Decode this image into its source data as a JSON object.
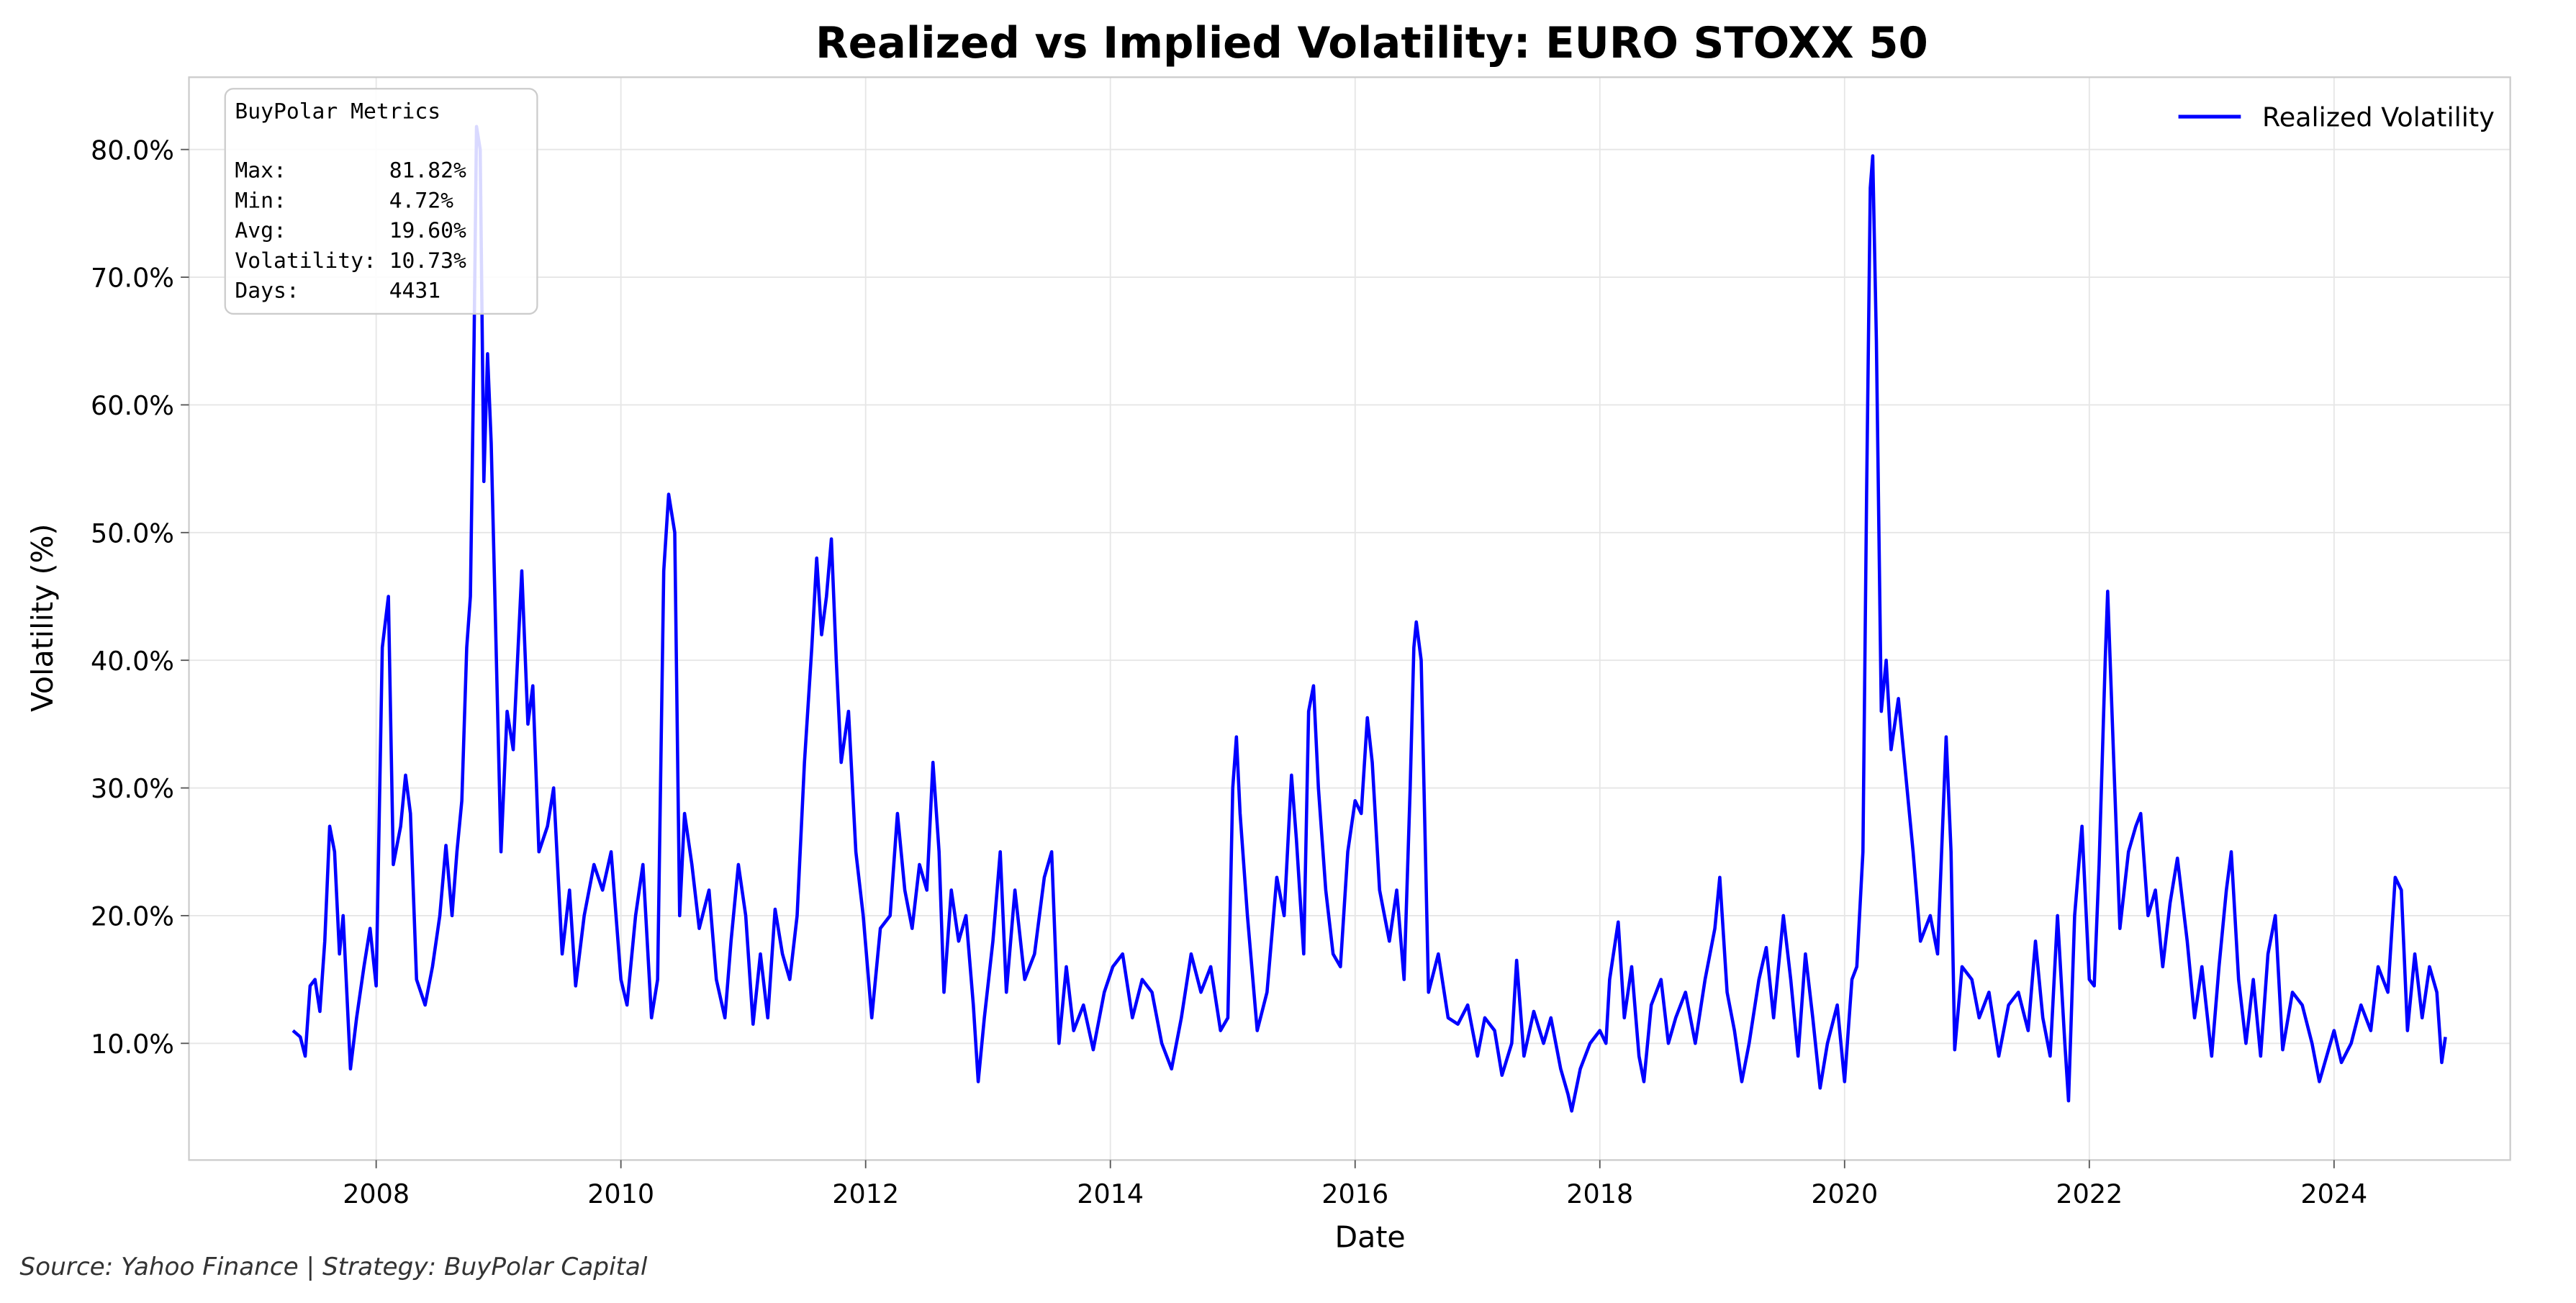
{
  "chart_data": {
    "type": "line",
    "title": "Realized vs Implied Volatility: EURO STOXX 50",
    "x_label": "Date",
    "y_label": "Volatility (%)",
    "source": "Source: Yahoo Finance | Strategy: BuyPolar Capital",
    "legend": "upper right",
    "grid": true,
    "xlim": [
      2006.47,
      2025.44
    ],
    "xticks": [
      2008,
      2010,
      2012,
      2014,
      2016,
      2018,
      2020,
      2022,
      2024
    ],
    "ylim": [
      0.86,
      85.66
    ],
    "yticks": [
      {
        "value": 10,
        "label": "10.0%"
      },
      {
        "value": 20,
        "label": "20.0%"
      },
      {
        "value": 30,
        "label": "30.0%"
      },
      {
        "value": 40,
        "label": "40.0%"
      },
      {
        "value": 50,
        "label": "50.0%"
      },
      {
        "value": 60,
        "label": "60.0%"
      },
      {
        "value": 70,
        "label": "70.0%"
      },
      {
        "value": 80,
        "label": "80.0%"
      }
    ],
    "stats_box": {
      "title": "BuyPolar Metrics",
      "lines": [
        "Max:        81.82%",
        "Min:        4.72%",
        "Avg:        19.60%",
        "Volatility: 10.73%",
        "Days:       4431"
      ]
    },
    "x": [
      2007.32,
      2007.38,
      2007.42,
      2007.46,
      2007.5,
      2007.54,
      2007.58,
      2007.62,
      2007.66,
      2007.7,
      2007.73,
      2007.79,
      2007.84,
      2007.9,
      2007.95,
      2008.0,
      2008.05,
      2008.1,
      2008.14,
      2008.2,
      2008.24,
      2008.28,
      2008.33,
      2008.4,
      2008.46,
      2008.52,
      2008.57,
      2008.62,
      2008.66,
      2008.7,
      2008.74,
      2008.77,
      2008.8,
      2008.82,
      2008.85,
      2008.88,
      2008.91,
      2008.94,
      2008.97,
      2009.02,
      2009.07,
      2009.12,
      2009.19,
      2009.24,
      2009.28,
      2009.33,
      2009.4,
      2009.45,
      2009.52,
      2009.58,
      2009.63,
      2009.7,
      2009.78,
      2009.85,
      2009.92,
      2010.0,
      2010.05,
      2010.12,
      2010.18,
      2010.25,
      2010.3,
      2010.35,
      2010.39,
      2010.44,
      2010.48,
      2010.52,
      2010.58,
      2010.64,
      2010.72,
      2010.78,
      2010.85,
      2010.9,
      2010.96,
      2011.02,
      2011.08,
      2011.14,
      2011.2,
      2011.26,
      2011.32,
      2011.38,
      2011.44,
      2011.5,
      2011.56,
      2011.6,
      2011.64,
      2011.68,
      2011.72,
      2011.76,
      2011.8,
      2011.86,
      2011.92,
      2011.98,
      2012.05,
      2012.12,
      2012.2,
      2012.26,
      2012.32,
      2012.38,
      2012.44,
      2012.5,
      2012.55,
      2012.6,
      2012.64,
      2012.7,
      2012.76,
      2012.82,
      2012.88,
      2012.92,
      2012.97,
      2013.04,
      2013.1,
      2013.15,
      2013.22,
      2013.3,
      2013.38,
      2013.46,
      2013.52,
      2013.58,
      2013.64,
      2013.7,
      2013.78,
      2013.86,
      2013.95,
      2014.02,
      2014.1,
      2014.18,
      2014.26,
      2014.34,
      2014.42,
      2014.5,
      2014.58,
      2014.66,
      2014.74,
      2014.82,
      2014.9,
      2014.96,
      2015.0,
      2015.03,
      2015.06,
      2015.12,
      2015.2,
      2015.28,
      2015.36,
      2015.42,
      2015.48,
      2015.52,
      2015.58,
      2015.62,
      2015.66,
      2015.7,
      2015.76,
      2015.82,
      2015.88,
      2015.94,
      2016.0,
      2016.05,
      2016.1,
      2016.14,
      2016.2,
      2016.28,
      2016.34,
      2016.4,
      2016.45,
      2016.48,
      2016.5,
      2016.54,
      2016.6,
      2016.68,
      2016.76,
      2016.84,
      2016.92,
      2017.0,
      2017.06,
      2017.14,
      2017.2,
      2017.28,
      2017.32,
      2017.38,
      2017.46,
      2017.54,
      2017.6,
      2017.68,
      2017.74,
      2017.77,
      2017.84,
      2017.92,
      2018.0,
      2018.05,
      2018.08,
      2018.15,
      2018.2,
      2018.26,
      2018.32,
      2018.36,
      2018.42,
      2018.5,
      2018.56,
      2018.62,
      2018.7,
      2018.78,
      2018.86,
      2018.94,
      2018.98,
      2019.04,
      2019.1,
      2019.16,
      2019.22,
      2019.3,
      2019.36,
      2019.42,
      2019.5,
      2019.56,
      2019.62,
      2019.68,
      2019.74,
      2019.8,
      2019.86,
      2019.94,
      2020.0,
      2020.06,
      2020.1,
      2020.15,
      2020.18,
      2020.21,
      2020.23,
      2020.26,
      2020.3,
      2020.34,
      2020.38,
      2020.44,
      2020.5,
      2020.56,
      2020.62,
      2020.7,
      2020.76,
      2020.83,
      2020.87,
      2020.9,
      2020.96,
      2021.04,
      2021.1,
      2021.18,
      2021.26,
      2021.34,
      2021.42,
      2021.5,
      2021.56,
      2021.62,
      2021.68,
      2021.74,
      2021.8,
      2021.83,
      2021.88,
      2021.94,
      2022.0,
      2022.04,
      2022.08,
      2022.13,
      2022.15,
      2022.2,
      2022.25,
      2022.32,
      2022.38,
      2022.42,
      2022.48,
      2022.54,
      2022.6,
      2022.66,
      2022.72,
      2022.8,
      2022.86,
      2022.92,
      2023.0,
      2023.06,
      2023.12,
      2023.16,
      2023.22,
      2023.28,
      2023.34,
      2023.4,
      2023.46,
      2023.52,
      2023.58,
      2023.66,
      2023.74,
      2023.82,
      2023.88,
      2023.94,
      2024.0,
      2024.06,
      2024.14,
      2024.22,
      2024.3,
      2024.36,
      2024.44,
      2024.5,
      2024.55,
      2024.6,
      2024.66,
      2024.72,
      2024.78,
      2024.84,
      2024.88,
      2024.91
    ],
    "series": [
      {
        "name": "Realized Volatility",
        "color": "#0000ff",
        "values": [
          11,
          10.5,
          9,
          14.5,
          15,
          12.5,
          18,
          27,
          25,
          17,
          20,
          8,
          12,
          16,
          19,
          14.5,
          41,
          45,
          24,
          27,
          31,
          28,
          15,
          13,
          16,
          20,
          25.5,
          20,
          25,
          29,
          41,
          45,
          65,
          81.8,
          80,
          54,
          64,
          57,
          45,
          25,
          36,
          33,
          47,
          35,
          38,
          25,
          27,
          30,
          17,
          22,
          14.5,
          20,
          24,
          22,
          25,
          15,
          13,
          20,
          24,
          12,
          15,
          47,
          53,
          50,
          20,
          28,
          24,
          19,
          22,
          15,
          12,
          18,
          24,
          20,
          11.5,
          17,
          12,
          20.5,
          17,
          15,
          20,
          32,
          41,
          48,
          42,
          45,
          49.5,
          40,
          32,
          36,
          25,
          20,
          12,
          19,
          20,
          28,
          22,
          19,
          24,
          22,
          32,
          25,
          14,
          22,
          18,
          20,
          13,
          7,
          12,
          18,
          25,
          14,
          22,
          15,
          17,
          23,
          25,
          10,
          16,
          11,
          13,
          9.5,
          14,
          16,
          17,
          12,
          15,
          14,
          10,
          8,
          12,
          17,
          14,
          16,
          11,
          12,
          30,
          34,
          28,
          20,
          11,
          14,
          23,
          20,
          31,
          26,
          17,
          36,
          38,
          30,
          22,
          17,
          16,
          25,
          29,
          28,
          35.5,
          32,
          22,
          18,
          22,
          15,
          30,
          41,
          43,
          40,
          14,
          17,
          12,
          11.5,
          13,
          9,
          12,
          11,
          7.5,
          10,
          16.5,
          9,
          12.5,
          10,
          12,
          8,
          6,
          4.7,
          8,
          10,
          11,
          10,
          15,
          19.5,
          12,
          16,
          9,
          7,
          13,
          15,
          10,
          12,
          14,
          10,
          15,
          19,
          23,
          14,
          11,
          7,
          10,
          15,
          17.5,
          12,
          20,
          15,
          9,
          17,
          12,
          6.5,
          10,
          13,
          7,
          15,
          16,
          25,
          53,
          77,
          79.5,
          65,
          36,
          40,
          33,
          37,
          31,
          25,
          18,
          20,
          17,
          34,
          25,
          9.5,
          16,
          15,
          12,
          14,
          9,
          13,
          14,
          11,
          18,
          12,
          9,
          20,
          10,
          5.5,
          20,
          27,
          15,
          14.5,
          24,
          40,
          45.4,
          32,
          19,
          25,
          27,
          28,
          20,
          22,
          16,
          21,
          24.5,
          18,
          12,
          16,
          9,
          16,
          22,
          25,
          15,
          10,
          15,
          9,
          17,
          20,
          9.5,
          14,
          13,
          10,
          7,
          9,
          11,
          8.5,
          10,
          13,
          11,
          16,
          14,
          23,
          22,
          11,
          17,
          12,
          16,
          14,
          8.5,
          10.5
        ]
      }
    ]
  }
}
